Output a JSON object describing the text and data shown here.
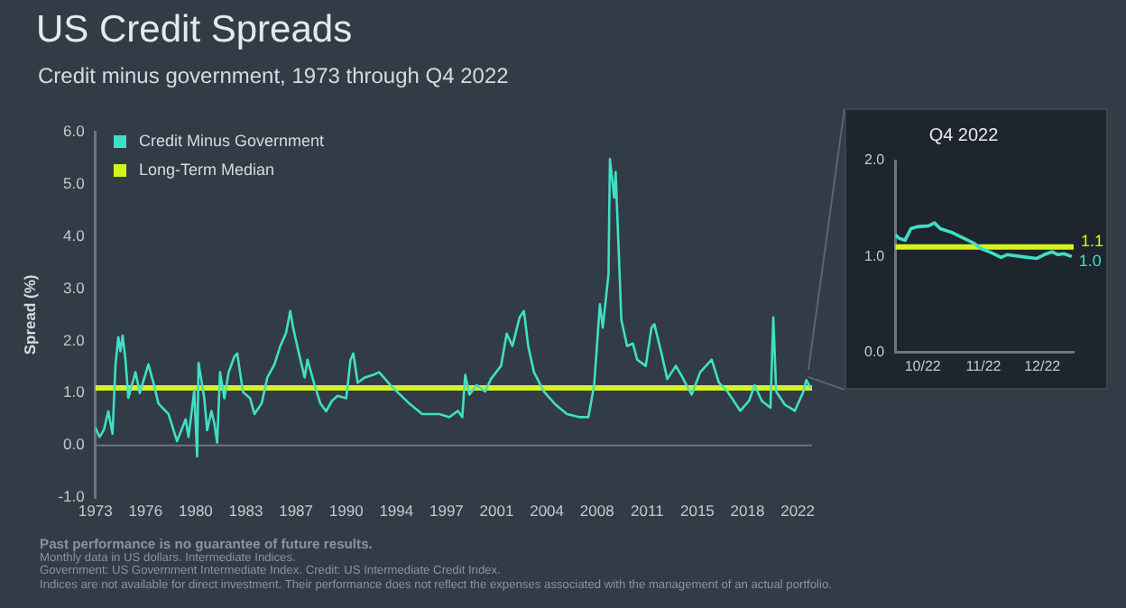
{
  "chart_data": [
    {
      "type": "line",
      "title": "US Credit Spreads",
      "subtitle": "Credit minus government, 1973 through Q4 2022",
      "ylabel": "Spread (%)",
      "legend": "top left",
      "grid": false,
      "marker": "none",
      "xlim": [
        1973,
        2023
      ],
      "xticks": [
        1973,
        {
          "value": 1976.5,
          "label": "1976"
        },
        1980,
        {
          "value": 1983.5,
          "label": "1983"
        },
        1987,
        {
          "value": 1990.5,
          "label": "1990"
        },
        1994,
        {
          "value": 1997.5,
          "label": "1997"
        },
        2001,
        {
          "value": 2004.5,
          "label": "2004"
        },
        2008,
        {
          "value": 2011.5,
          "label": "2011"
        },
        2015,
        {
          "value": 2018.5,
          "label": "2018"
        },
        2022
      ],
      "ylim": [
        -1,
        6
      ],
      "yticks": [
        {
          "value": -1,
          "label": "-1.0"
        },
        {
          "value": 0,
          "label": "0.0"
        },
        {
          "value": 1,
          "label": "1.0"
        },
        {
          "value": 2,
          "label": "2.0"
        },
        {
          "value": 3,
          "label": "3.0"
        },
        {
          "value": 4,
          "label": "4.0"
        },
        {
          "value": 5,
          "label": "5.0"
        },
        {
          "value": 6,
          "label": "6.0"
        }
      ],
      "ref_lines": [
        {
          "axis": "y",
          "value": 0,
          "color": "#6e757c"
        }
      ],
      "series": [
        {
          "name": "Credit Minus Government",
          "color": "#3fe0c5",
          "x": [
            1973.0,
            1973.3,
            1973.6,
            1973.9,
            1974.2,
            1974.4,
            1974.6,
            1974.75,
            1974.9,
            1975.1,
            1975.3,
            1975.8,
            1976.1,
            1976.7,
            1977.1,
            1977.4,
            1978.1,
            1978.7,
            1979.3,
            1979.5,
            1979.9,
            1980.1,
            1980.2,
            1980.6,
            1980.8,
            1981.1,
            1981.3,
            1981.5,
            1981.7,
            1982.0,
            1982.3,
            1982.7,
            1982.9,
            1983.3,
            1983.8,
            1984.1,
            1984.6,
            1985.0,
            1985.5,
            1985.9,
            1986.3,
            1986.6,
            1986.8,
            1987.2,
            1987.6,
            1987.8,
            1988.3,
            1988.7,
            1989.1,
            1989.5,
            1989.9,
            1990.5,
            1990.8,
            1991.0,
            1991.3,
            1991.8,
            1992.4,
            1992.8,
            1993.6,
            1994.9,
            1995.8,
            1997.0,
            1997.7,
            1998.3,
            1998.6,
            1998.8,
            1999.1,
            1999.6,
            2000.2,
            2000.6,
            2001.3,
            2001.7,
            2002.1,
            2002.6,
            2002.9,
            2003.2,
            2003.6,
            2004.3,
            2005.1,
            2005.9,
            2006.8,
            2007.4,
            2007.8,
            2008.2,
            2008.4,
            2008.8,
            2008.9,
            2009.2,
            2009.3,
            2009.7,
            2010.1,
            2010.5,
            2010.8,
            2011.4,
            2011.8,
            2012.0,
            2012.5,
            2012.9,
            2013.5,
            2013.9,
            2014.6,
            2015.2,
            2016.0,
            2016.5,
            2017.1,
            2018.0,
            2018.6,
            2019.0,
            2019.5,
            2020.1,
            2020.3,
            2020.5,
            2021.1,
            2021.8,
            2022.4,
            2022.6,
            2022.9
          ],
          "values": [
            0.34,
            0.16,
            0.3,
            0.65,
            0.22,
            1.52,
            2.07,
            1.8,
            2.1,
            1.64,
            0.91,
            1.4,
            1.0,
            1.55,
            1.15,
            0.8,
            0.6,
            0.08,
            0.5,
            0.16,
            1.05,
            -0.21,
            1.58,
            0.9,
            0.29,
            0.66,
            0.42,
            0.05,
            1.4,
            0.9,
            1.4,
            1.7,
            1.76,
            1.02,
            0.9,
            0.6,
            0.8,
            1.3,
            1.55,
            1.9,
            2.15,
            2.57,
            2.25,
            1.76,
            1.3,
            1.64,
            1.15,
            0.8,
            0.65,
            0.85,
            0.95,
            0.9,
            1.64,
            1.76,
            1.2,
            1.3,
            1.35,
            1.4,
            1.15,
            0.8,
            0.6,
            0.6,
            0.54,
            0.66,
            0.54,
            1.35,
            0.97,
            1.15,
            1.03,
            1.27,
            1.52,
            2.14,
            1.9,
            2.45,
            2.57,
            1.9,
            1.4,
            1.03,
            0.78,
            0.6,
            0.54,
            0.54,
            1.15,
            2.7,
            2.25,
            3.27,
            5.48,
            4.74,
            5.23,
            2.4,
            1.9,
            1.95,
            1.64,
            1.52,
            2.25,
            2.32,
            1.76,
            1.27,
            1.52,
            1.33,
            0.97,
            1.4,
            1.64,
            1.2,
            1.03,
            0.66,
            0.85,
            1.15,
            0.85,
            0.72,
            2.45,
            1.03,
            0.78,
            0.66,
            1.03,
            1.25,
            1.1
          ]
        },
        {
          "name": "Long-Term Median",
          "color": "#d4f21c",
          "x": [
            1973,
            2023
          ],
          "values": [
            1.1,
            1.1
          ]
        }
      ],
      "annotations": [
        "Past performance is no guarantee of future results.",
        "Monthly data in US dollars. Intermediate Indices.",
        "Government: US Government Intermediate Index. Credit: US Intermediate Credit Index.",
        "Indices are not available for direct investment. Their performance does not reflect the expenses associated with the management of an actual portfolio."
      ]
    },
    {
      "type": "line",
      "title": "Q4 2022",
      "grid": false,
      "marker": "none",
      "xlim": [
        "2022-10-01",
        "2022-12-31"
      ],
      "xticks": [
        {
          "value": "2022-10-15",
          "label": "10/22"
        },
        {
          "value": "2022-11-15",
          "label": "11/22"
        },
        {
          "value": "2022-12-15",
          "label": "12/22"
        }
      ],
      "ylim": [
        0,
        2
      ],
      "yticks": [
        {
          "value": 0,
          "label": "0.0"
        },
        {
          "value": 1,
          "label": "1.0"
        },
        {
          "value": 2,
          "label": "2.0"
        }
      ],
      "series": [
        {
          "color": "#3fe0c5",
          "x": [
            "2022-10-01",
            "2022-10-03",
            "2022-10-06",
            "2022-10-09",
            "2022-10-12",
            "2022-10-18",
            "2022-10-21",
            "2022-10-24",
            "2022-10-30",
            "2022-11-05",
            "2022-11-10",
            "2022-11-14",
            "2022-11-19",
            "2022-11-24",
            "2022-11-27",
            "2022-12-04",
            "2022-12-12",
            "2022-12-16",
            "2022-12-20",
            "2022-12-23",
            "2022-12-26",
            "2022-12-30"
          ],
          "values": [
            1.23,
            1.19,
            1.17,
            1.29,
            1.31,
            1.32,
            1.35,
            1.29,
            1.25,
            1.19,
            1.14,
            1.08,
            1.04,
            0.99,
            1.02,
            1.0,
            0.98,
            1.02,
            1.05,
            1.02,
            1.03,
            1.0
          ],
          "value_labels": [
            null,
            null,
            null,
            null,
            null,
            null,
            null,
            null,
            null,
            null,
            null,
            null,
            null,
            null,
            null,
            null,
            null,
            null,
            null,
            null,
            null,
            "1.0"
          ]
        },
        {
          "color": "#d4f21c",
          "x": [
            "2022-10-01",
            "2022-12-31"
          ],
          "values": [
            1.1,
            1.1
          ],
          "value_labels": [
            null,
            "1.1"
          ]
        }
      ]
    }
  ]
}
